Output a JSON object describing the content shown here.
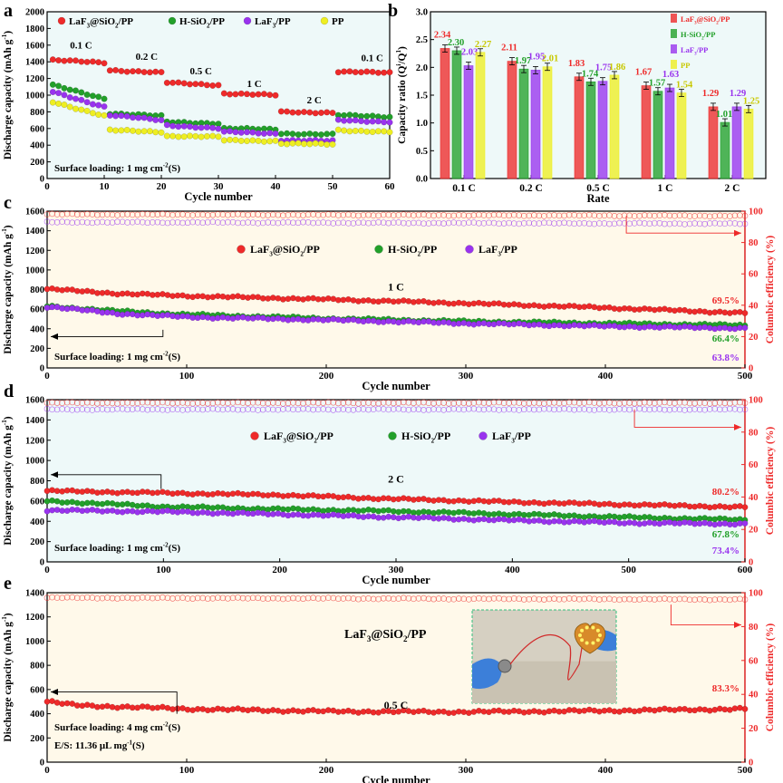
{
  "colors": {
    "lafsio": "#ee2a2a",
    "hsio": "#22a02a",
    "laf": "#9933ee",
    "pp": "#eeee22",
    "right_axis": "#ee2a2a",
    "plot_bg_a": "#eef9f9",
    "plot_bg_b": "#fff9ea"
  },
  "chart_data": [
    {
      "panel": "a",
      "type": "scatter",
      "xlabel": "Cycle number",
      "ylabel": "Discharge capacity (mAh g-1)",
      "ylabel_parts": [
        "Discharge capacity (mAh g",
        "-1",
        ")"
      ],
      "xlim": [
        0,
        60
      ],
      "ylim": [
        0,
        2000
      ],
      "xticks": [
        "0",
        "10",
        "20",
        "30",
        "40",
        "50",
        "60"
      ],
      "yticks": [
        "0",
        "200",
        "400",
        "600",
        "800",
        "1000",
        "1200",
        "1400",
        "1600",
        "1800",
        "2000"
      ],
      "legend": [
        {
          "parts": [
            "LaF",
            "3",
            "@SiO",
            "2",
            "/PP"
          ],
          "color": "lafsio"
        },
        {
          "parts": [
            "H-SiO",
            "2",
            "/PP"
          ],
          "color": "hsio"
        },
        {
          "parts": [
            "LaF",
            "3",
            "/PP"
          ],
          "color": "laf"
        },
        {
          "parts": [
            "PP"
          ],
          "color": "pp"
        }
      ],
      "rate_labels": [
        {
          "text": "0.1 C",
          "x": 4,
          "y": 1560
        },
        {
          "text": "0.2 C",
          "x": 15.5,
          "y": 1425
        },
        {
          "text": "0.5 C",
          "x": 25,
          "y": 1250
        },
        {
          "text": "1 C",
          "x": 35,
          "y": 1100
        },
        {
          "text": "2 C",
          "x": 45.5,
          "y": 900
        },
        {
          "text": "0.1 C",
          "x": 55,
          "y": 1410
        }
      ],
      "annotation": {
        "parts": [
          "Surface loading:  1 mg cm",
          "-2",
          "(S)"
        ]
      },
      "series": [
        {
          "name": "LaF3@SiO2/PP",
          "color": "lafsio",
          "segments": [
            [
              1420,
              1390
            ],
            [
              1300,
              1270
            ],
            [
              1150,
              1120
            ],
            [
              1020,
              1000
            ],
            [
              800,
              790
            ],
            [
              1280,
              1270
            ]
          ]
        },
        {
          "name": "H-SiO2/PP",
          "color": "hsio",
          "segments": [
            [
              1120,
              960
            ],
            [
              780,
              750
            ],
            [
              680,
              660
            ],
            [
              600,
              590
            ],
            [
              540,
              530
            ],
            [
              760,
              740
            ]
          ]
        },
        {
          "name": "LaF3/PP",
          "color": "laf",
          "segments": [
            [
              1040,
              860
            ],
            [
              760,
              700
            ],
            [
              640,
              600
            ],
            [
              560,
              540
            ],
            [
              460,
              450
            ],
            [
              700,
              680
            ]
          ]
        },
        {
          "name": "PP",
          "color": "pp",
          "segments": [
            [
              920,
              750
            ],
            [
              580,
              560
            ],
            [
              510,
              500
            ],
            [
              460,
              450
            ],
            [
              420,
              410
            ],
            [
              580,
              560
            ]
          ]
        }
      ]
    },
    {
      "panel": "b",
      "type": "bar",
      "xlabel": "Rate",
      "ylabel": "Capacity ratio (Q/Q0)",
      "ylabel_parts": [
        "Capacity ratio (Q",
        "i",
        "/Q",
        "1",
        ")"
      ],
      "categories": [
        "0.1 C",
        "0.2 C",
        "0.5 C",
        "1 C",
        "2 C"
      ],
      "ylim": [
        0,
        3.0
      ],
      "yticks": [
        "0.0",
        "0.5",
        "1.0",
        "1.5",
        "2.0",
        "2.5",
        "3.0"
      ],
      "series": [
        {
          "name": "LaF3@SiO2/PP",
          "color": "lafsio",
          "values": [
            2.34,
            2.11,
            1.83,
            1.67,
            1.29
          ],
          "labels": [
            "2.34",
            "2.11",
            "1.83",
            "1.67",
            "1.29"
          ]
        },
        {
          "name": "H-SiO2/PP",
          "color": "hsio",
          "values": [
            2.3,
            1.97,
            1.74,
            1.57,
            1.01
          ],
          "labels": [
            "2.30",
            "1.97",
            "1.74",
            "1.57",
            "1.01"
          ]
        },
        {
          "name": "LaF3/PP",
          "color": "laf",
          "values": [
            2.03,
            1.95,
            1.75,
            1.63,
            1.29
          ],
          "labels": [
            "2.03",
            "1.95",
            "1.75",
            "1.63",
            "1.29"
          ]
        },
        {
          "name": "PP",
          "color": "pp",
          "values": [
            2.27,
            2.01,
            1.86,
            1.54,
            1.25
          ],
          "labels": [
            "2.27",
            "2.01",
            "1.86",
            "1.54",
            "1.25"
          ]
        }
      ],
      "legend": [
        {
          "parts": [
            "LaF",
            "3",
            "@SiO",
            "2",
            "/PP"
          ],
          "color": "lafsio"
        },
        {
          "parts": [
            "H-SiO",
            "2",
            "/PP"
          ],
          "color": "hsio"
        },
        {
          "parts": [
            "LaF",
            "3",
            "/PP"
          ],
          "color": "laf"
        },
        {
          "parts": [
            "PP"
          ],
          "color": "pp"
        }
      ]
    },
    {
      "panel": "c",
      "type": "scatter",
      "xlabel": "Cycle number",
      "ylabel": "Discharge capacity (mAh g-1)",
      "ylabel_parts": [
        "Discharge capacity (mAh g",
        "-1",
        ")"
      ],
      "ylabel_right": "Columbic efficiency (%)",
      "xlim": [
        0,
        500
      ],
      "ylim": [
        0,
        1600
      ],
      "y2lim": [
        0,
        100
      ],
      "xticks": [
        "0",
        "100",
        "200",
        "300",
        "400",
        "500"
      ],
      "yticks": [
        "0",
        "200",
        "400",
        "600",
        "800",
        "1000",
        "1200",
        "1400",
        "1600"
      ],
      "y2ticks": [
        "0",
        "20",
        "40",
        "60",
        "80",
        "100"
      ],
      "rate": "1 C",
      "rate_pos": {
        "x": 250,
        "y": 790
      },
      "legend": [
        {
          "parts": [
            "LaF",
            "3",
            "@SiO",
            "2",
            "/PP"
          ],
          "color": "lafsio"
        },
        {
          "parts": [
            "H-SiO",
            "2",
            "/PP"
          ],
          "color": "hsio"
        },
        {
          "parts": [
            "LaF",
            "3",
            "/PP"
          ],
          "color": "laf"
        }
      ],
      "retention": [
        {
          "text": "69.5%",
          "color": "lafsio"
        },
        {
          "text": "66.4%",
          "color": "hsio"
        },
        {
          "text": "63.8%",
          "color": "laf"
        }
      ],
      "annotation": {
        "parts": [
          "Surface loading:  1 mg cm",
          "-2",
          "(S)"
        ]
      },
      "capacity": [
        {
          "name": "LaF3@SiO2/PP",
          "color": "lafsio",
          "points": [
            [
              1,
              805
            ],
            [
              50,
              760
            ],
            [
              100,
              735
            ],
            [
              200,
              700
            ],
            [
              300,
              660
            ],
            [
              400,
              615
            ],
            [
              500,
              560
            ]
          ]
        },
        {
          "name": "H-SiO2/PP",
          "color": "hsio",
          "points": [
            [
              1,
              630
            ],
            [
              50,
              580
            ],
            [
              100,
              545
            ],
            [
              200,
              505
            ],
            [
              300,
              475
            ],
            [
              400,
              455
            ],
            [
              500,
              435
            ]
          ]
        },
        {
          "name": "LaF3/PP",
          "color": "laf",
          "points": [
            [
              1,
              625
            ],
            [
              50,
              555
            ],
            [
              100,
              520
            ],
            [
              200,
              490
            ],
            [
              300,
              455
            ],
            [
              400,
              425
            ],
            [
              500,
              405
            ]
          ]
        }
      ],
      "efficiency": [
        {
          "color": "lafsio",
          "points": [
            [
              1,
              98
            ],
            [
              500,
              97
            ]
          ]
        },
        {
          "color": "laf",
          "points": [
            [
              1,
              93
            ],
            [
              500,
              92
            ]
          ]
        }
      ]
    },
    {
      "panel": "d",
      "type": "scatter",
      "xlabel": "Cycle number",
      "ylabel": "Discharge capacity (mAh g-1)",
      "ylabel_parts": [
        "Discharge capacity (mAh g",
        "-1",
        ")"
      ],
      "ylabel_right": "Columbic efficiency (%)",
      "xlim": [
        0,
        600
      ],
      "ylim": [
        0,
        1600
      ],
      "y2lim": [
        0,
        100
      ],
      "xticks": [
        "0",
        "100",
        "200",
        "300",
        "400",
        "500",
        "600"
      ],
      "yticks": [
        "0",
        "200",
        "400",
        "600",
        "800",
        "1000",
        "1200",
        "1400",
        "1600"
      ],
      "y2ticks": [
        "0",
        "20",
        "40",
        "60",
        "80",
        "100"
      ],
      "rate": "2 C",
      "rate_pos": {
        "x": 300,
        "y": 780
      },
      "legend": [
        {
          "parts": [
            "LaF",
            "3",
            "@SiO",
            "2",
            "/PP"
          ],
          "color": "lafsio"
        },
        {
          "parts": [
            "H-SiO",
            "2",
            "/PP"
          ],
          "color": "hsio"
        },
        {
          "parts": [
            "LaF",
            "3",
            "/PP"
          ],
          "color": "laf"
        }
      ],
      "retention": [
        {
          "text": "80.2%",
          "color": "lafsio"
        },
        {
          "text": "67.8%",
          "color": "hsio"
        },
        {
          "text": "73.4%",
          "color": "laf"
        }
      ],
      "annotation": {
        "parts": [
          "Surface loading:  1 mg cm",
          "-2",
          "(S)"
        ]
      },
      "capacity": [
        {
          "name": "LaF3@SiO2/PP",
          "color": "lafsio",
          "points": [
            [
              1,
              700
            ],
            [
              100,
              680
            ],
            [
              200,
              660
            ],
            [
              300,
              620
            ],
            [
              400,
              590
            ],
            [
              500,
              565
            ],
            [
              600,
              540
            ]
          ]
        },
        {
          "name": "H-SiO2/PP",
          "color": "hsio",
          "points": [
            [
              1,
              600
            ],
            [
              100,
              545
            ],
            [
              200,
              520
            ],
            [
              300,
              500
            ],
            [
              400,
              470
            ],
            [
              500,
              440
            ],
            [
              600,
              415
            ]
          ]
        },
        {
          "name": "LaF3/PP",
          "color": "laf",
          "points": [
            [
              1,
              510
            ],
            [
              100,
              495
            ],
            [
              200,
              470
            ],
            [
              300,
              440
            ],
            [
              400,
              410
            ],
            [
              500,
              385
            ],
            [
              600,
              375
            ]
          ]
        }
      ],
      "efficiency": [
        {
          "color": "lafsio",
          "points": [
            [
              1,
              98
            ],
            [
              600,
              98
            ]
          ]
        },
        {
          "color": "laf",
          "points": [
            [
              1,
              94
            ],
            [
              600,
              94
            ]
          ]
        }
      ]
    },
    {
      "panel": "e",
      "type": "scatter",
      "xlabel": "Cycle number",
      "ylabel": "Discharge capacity (mAh g-1)",
      "ylabel_parts": [
        "Discharge capacity (mAh g",
        "-1",
        ")"
      ],
      "ylabel_right": "Columbic efficiency (%)",
      "xlim": [
        0,
        500
      ],
      "ylim": [
        0,
        1400
      ],
      "y2lim": [
        0,
        100
      ],
      "xticks": [
        "0",
        "100",
        "200",
        "300",
        "400",
        "500"
      ],
      "yticks": [
        "0",
        "200",
        "400",
        "600",
        "800",
        "1000",
        "1200",
        "1400"
      ],
      "y2ticks": [
        "0",
        "20",
        "40",
        "60",
        "80",
        "100"
      ],
      "rate": "0.5 C",
      "rate_pos": {
        "x": 250,
        "y": 440
      },
      "sample": {
        "parts": [
          "LaF",
          "3",
          "@SiO",
          "2",
          "/PP"
        ]
      },
      "retention": [
        {
          "text": "83.3%",
          "color": "lafsio"
        }
      ],
      "annotation": {
        "parts": [
          "Surface loading:  4 mg cm",
          "-2",
          "(S)"
        ]
      },
      "annotation2": {
        "parts": [
          "E/S:  11.36 μL mg",
          "-1",
          "(S)"
        ]
      },
      "capacity": [
        {
          "name": "LaF3@SiO2/PP",
          "color": "lafsio",
          "points": [
            [
              1,
              500
            ],
            [
              20,
              470
            ],
            [
              100,
              440
            ],
            [
              200,
              420
            ],
            [
              300,
              415
            ],
            [
              400,
              425
            ],
            [
              500,
              440
            ]
          ]
        }
      ],
      "efficiency": [
        {
          "color": "lafsio",
          "points": [
            [
              1,
              97
            ],
            [
              500,
              96
            ]
          ]
        }
      ]
    }
  ],
  "panel_letters": [
    "a",
    "b",
    "c",
    "d",
    "e"
  ]
}
